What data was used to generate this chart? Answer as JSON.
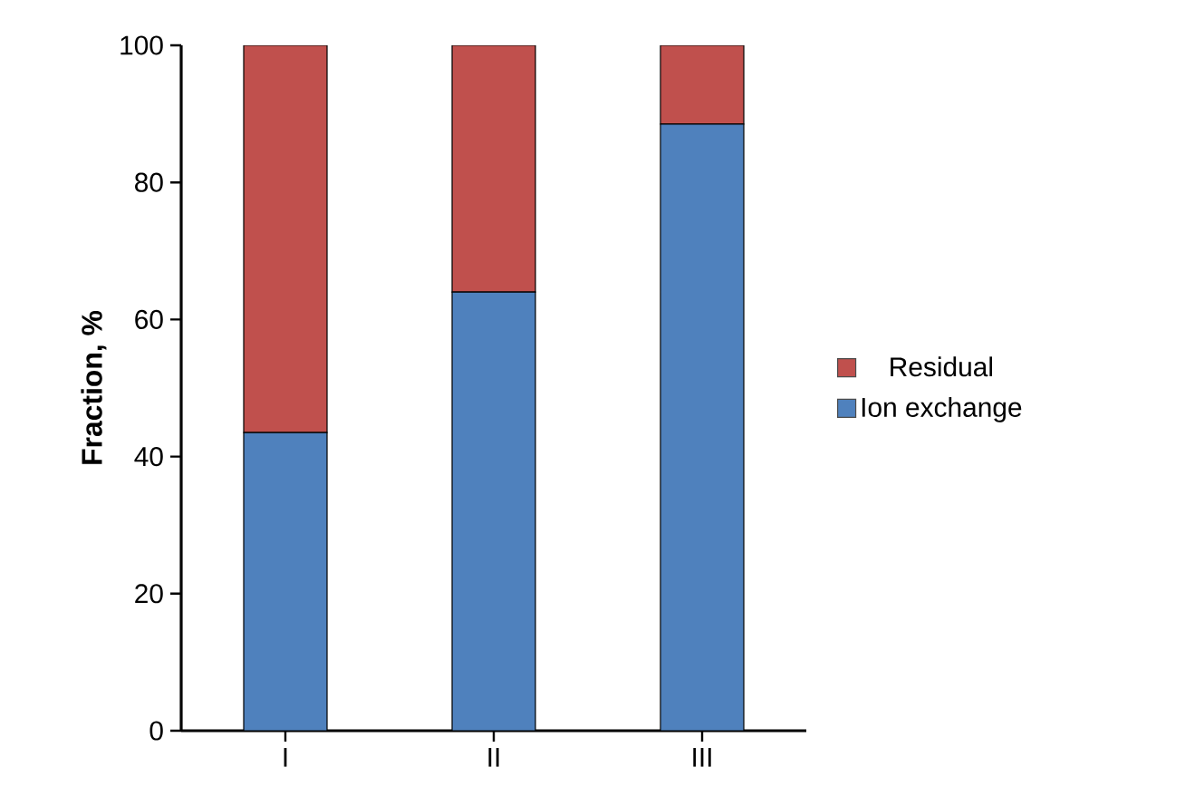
{
  "chart_data": {
    "type": "bar",
    "stacked": true,
    "ylabel": "Fraction, %",
    "categories": [
      "I",
      "II",
      "III"
    ],
    "series": [
      {
        "name": "Ion exchange",
        "color": "#4f81bd",
        "values": [
          43.5,
          64,
          88.5
        ]
      },
      {
        "name": "Residual",
        "color": "#c0504d",
        "values": [
          56.5,
          36,
          11.5
        ]
      }
    ],
    "ylim": [
      0,
      100
    ],
    "yticks": [
      0,
      20,
      40,
      60,
      80,
      100
    ],
    "legend": "right",
    "grid": false
  }
}
